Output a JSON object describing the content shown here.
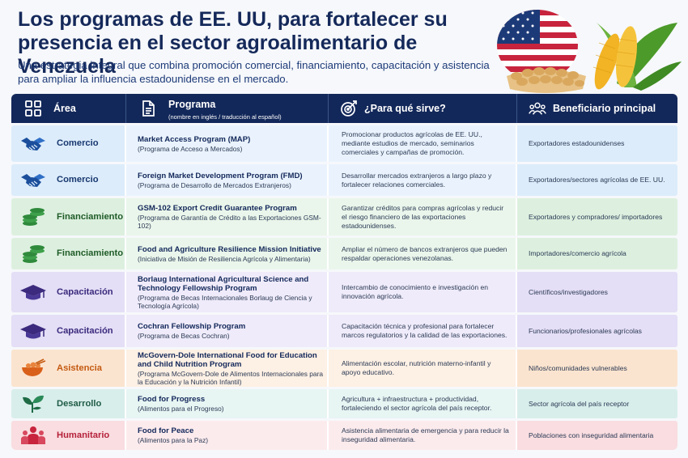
{
  "header": {
    "title": "Los programas de EE. UU, para fortalecer su presencia en el sector agroalimentario de Venezuela",
    "subtitle": "Una estrategia integral que combina promoción comercial, financiamiento, capacitación y asistencia para ampliar la influencia estadounidense en el mercado."
  },
  "table": {
    "columns": {
      "area": "Área",
      "programa": "Programa",
      "programa_sub": "(nombre en inglés / traducción al español)",
      "proposito": "¿Para qué sirve?",
      "beneficiario": "Beneficiario principal"
    },
    "rows": [
      {
        "area": "Comercio",
        "icon": "handshake-icon",
        "name": "Market Access Program (MAP)",
        "translation": "(Programa de Acceso a Mercados)",
        "purpose": "Promocionar productos agrícolas de EE. UU., mediante estudios de mercado, seminarios comerciales y campañas de promoción.",
        "beneficiary": "Exportadores estadounidenses"
      },
      {
        "area": "Comercio",
        "icon": "handshake-icon",
        "name": "Foreign Market Development Program (FMD)",
        "translation": "(Programa de Desarrollo de Mercados Extranjeros)",
        "purpose": "Desarrollar mercados extranjeros a largo plazo y fortalecer relaciones comerciales.",
        "beneficiary": "Exportadores/sectores agrícolas de EE. UU."
      },
      {
        "area": "Financiamiento",
        "icon": "coins-icon",
        "name": "GSM-102 Export Credit Guarantee Program",
        "translation": "(Programa de Garantía de Crédito a las Exportaciones GSM-102)",
        "purpose": "Garantizar créditos para compras agrícolas y reducir el riesgo financiero de las exportaciones estadounidenses.",
        "beneficiary": "Exportadores y compradores/ importadores"
      },
      {
        "area": "Financiamiento",
        "icon": "coins-icon",
        "name": "Food and Agriculture Resilience Mission Initiative",
        "translation": "(Iniciativa de Misión de Resiliencia Agrícola y Alimentaria)",
        "purpose": "Ampliar el número de bancos extranjeros que pueden respaldar operaciones venezolanas.",
        "beneficiary": "Importadores/comercio agrícola"
      },
      {
        "area": "Capacitación",
        "icon": "graduation-cap-icon",
        "name": "Borlaug International Agricultural Science and Technology Fellowship Program",
        "translation": "(Programa de Becas Internacionales Borlaug de Ciencia y Tecnología Agrícola)",
        "purpose": "Intercambio de conocimiento e investigación en innovación agrícola.",
        "beneficiary": "Científicos/investigadores"
      },
      {
        "area": "Capacitación",
        "icon": "graduation-cap-icon",
        "name": "Cochran Fellowship Program",
        "translation": "(Programa de Becas Cochran)",
        "purpose": "Capacitación técnica y profesional para fortalecer marcos regulatorios y la calidad de las exportaciones.",
        "beneficiary": "Funcionarios/profesionales agrícolas"
      },
      {
        "area": "Asistencia",
        "icon": "food-bowl-icon",
        "name": "McGovern-Dole International Food for Education and Child Nutrition Program",
        "translation": "(Programa McGovern-Dole de Alimentos Internacionales para la Educación y la Nutrición Infantil)",
        "purpose": "Alimentación escolar, nutrición materno-infantil y apoyo educativo.",
        "beneficiary": "Niños/comunidades vulnerables"
      },
      {
        "area": "Desarrollo",
        "icon": "sprout-icon",
        "name": "Food for Progress",
        "translation": "(Alimentos para el Progreso)",
        "purpose": "Agricultura + infraestructura + productividad, fortaleciendo el sector agrícola del país receptor.",
        "beneficiary": "Sector agrícola del país receptor"
      },
      {
        "area": "Humanitario",
        "icon": "people-icon",
        "name": "Food for Peace",
        "translation": "(Alimentos para la Paz)",
        "purpose": "Asistencia alimentaria de emergencia y para reducir la inseguridad alimentaria.",
        "beneficiary": "Poblaciones con inseguridad alimentaria"
      }
    ]
  },
  "colors": {
    "header_bg": "#13285a",
    "comercio": "#1b4f9c",
    "financiamiento": "#2f8a3c",
    "capacitacion": "#3b2a7d",
    "asistencia": "#d9601a",
    "desarrollo": "#1f6b45",
    "humanitario": "#c8243d"
  },
  "hero_image": "us-flag-and-harvest-icon"
}
